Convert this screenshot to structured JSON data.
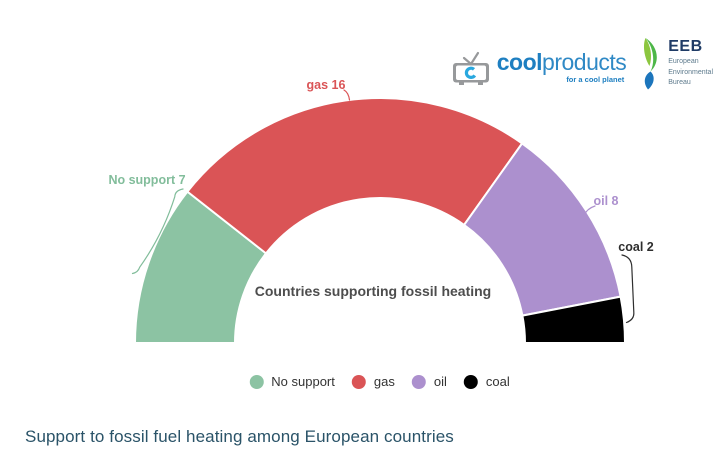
{
  "caption": "Support to fossil fuel heating among European countries",
  "header": {
    "coolproducts": {
      "bold": "cool",
      "light": "products",
      "tagline": "for a cool planet"
    },
    "eeb": {
      "acronym": "EEB",
      "line1": "European",
      "line2": "Environmental",
      "line3": "Bureau"
    }
  },
  "chart_data": {
    "type": "pie",
    "variant": "half-donut",
    "title": "Countries supporting fossil heating",
    "categories": [
      "No support",
      "gas",
      "oil",
      "coal"
    ],
    "values": [
      7,
      16,
      8,
      2
    ],
    "total": 33,
    "colors": [
      "#8CC3A3",
      "#DA5456",
      "#AC90CE",
      "#000000"
    ],
    "label_colors": [
      "#82BD9B",
      "#DA5456",
      "#AC90CE",
      "#2E2E2E"
    ],
    "annotations": [
      "No support 7",
      "gas 16",
      "oil 8",
      "coal 2"
    ],
    "legend_position": "bottom",
    "start_angle_deg": 180,
    "end_angle_deg": 0
  }
}
